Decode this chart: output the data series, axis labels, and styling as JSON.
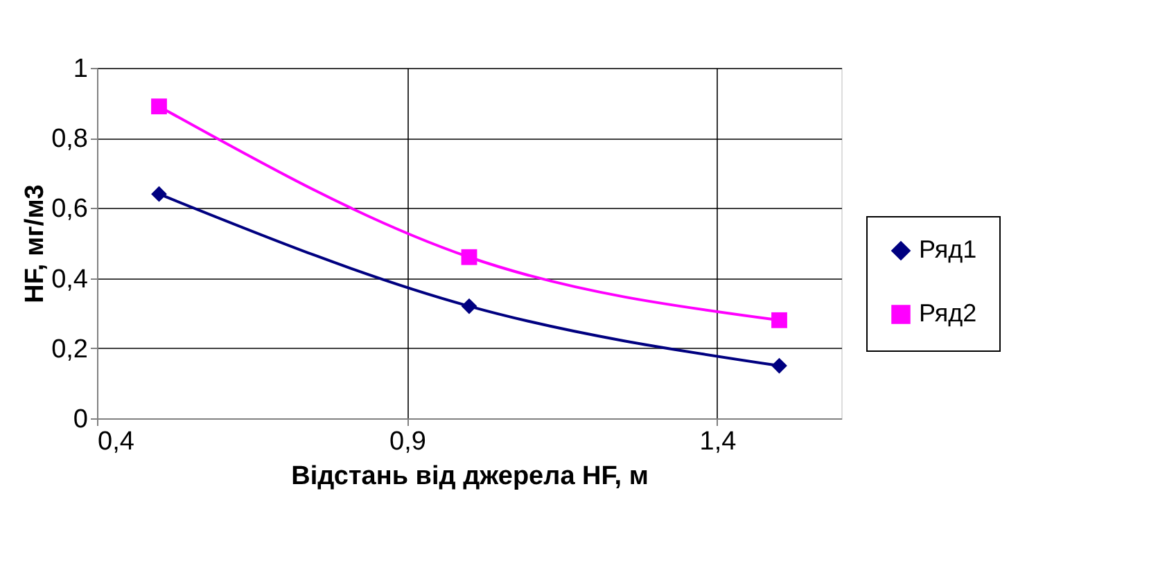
{
  "chart_data": {
    "type": "line",
    "xlabel": "Відстань від джерела HF, м",
    "ylabel": "HF, мг/м3",
    "x": [
      0.5,
      1.0,
      1.5
    ],
    "series": [
      {
        "name": "Ряд1",
        "color": "#000080",
        "marker": "diamond",
        "values": [
          0.64,
          0.32,
          0.15
        ]
      },
      {
        "name": "Ряд2",
        "color": "#ff00ff",
        "marker": "square",
        "values": [
          0.89,
          0.46,
          0.28
        ]
      }
    ],
    "xlim": [
      0.4,
      1.6
    ],
    "xticks": [
      {
        "value": 0.4,
        "label": "0,4"
      },
      {
        "value": 0.9,
        "label": "0,9"
      },
      {
        "value": 1.4,
        "label": "1,4"
      }
    ],
    "ylim": [
      0,
      1
    ],
    "yticks": [
      0,
      {
        "value": 0.2,
        "label": "0,2"
      },
      {
        "value": 0.4,
        "label": "0,4"
      },
      {
        "value": 0.6,
        "label": "0,6"
      },
      {
        "value": 0.8,
        "label": "0,8"
      },
      1
    ],
    "grid": true,
    "legend": "right",
    "line_style": "solid"
  }
}
